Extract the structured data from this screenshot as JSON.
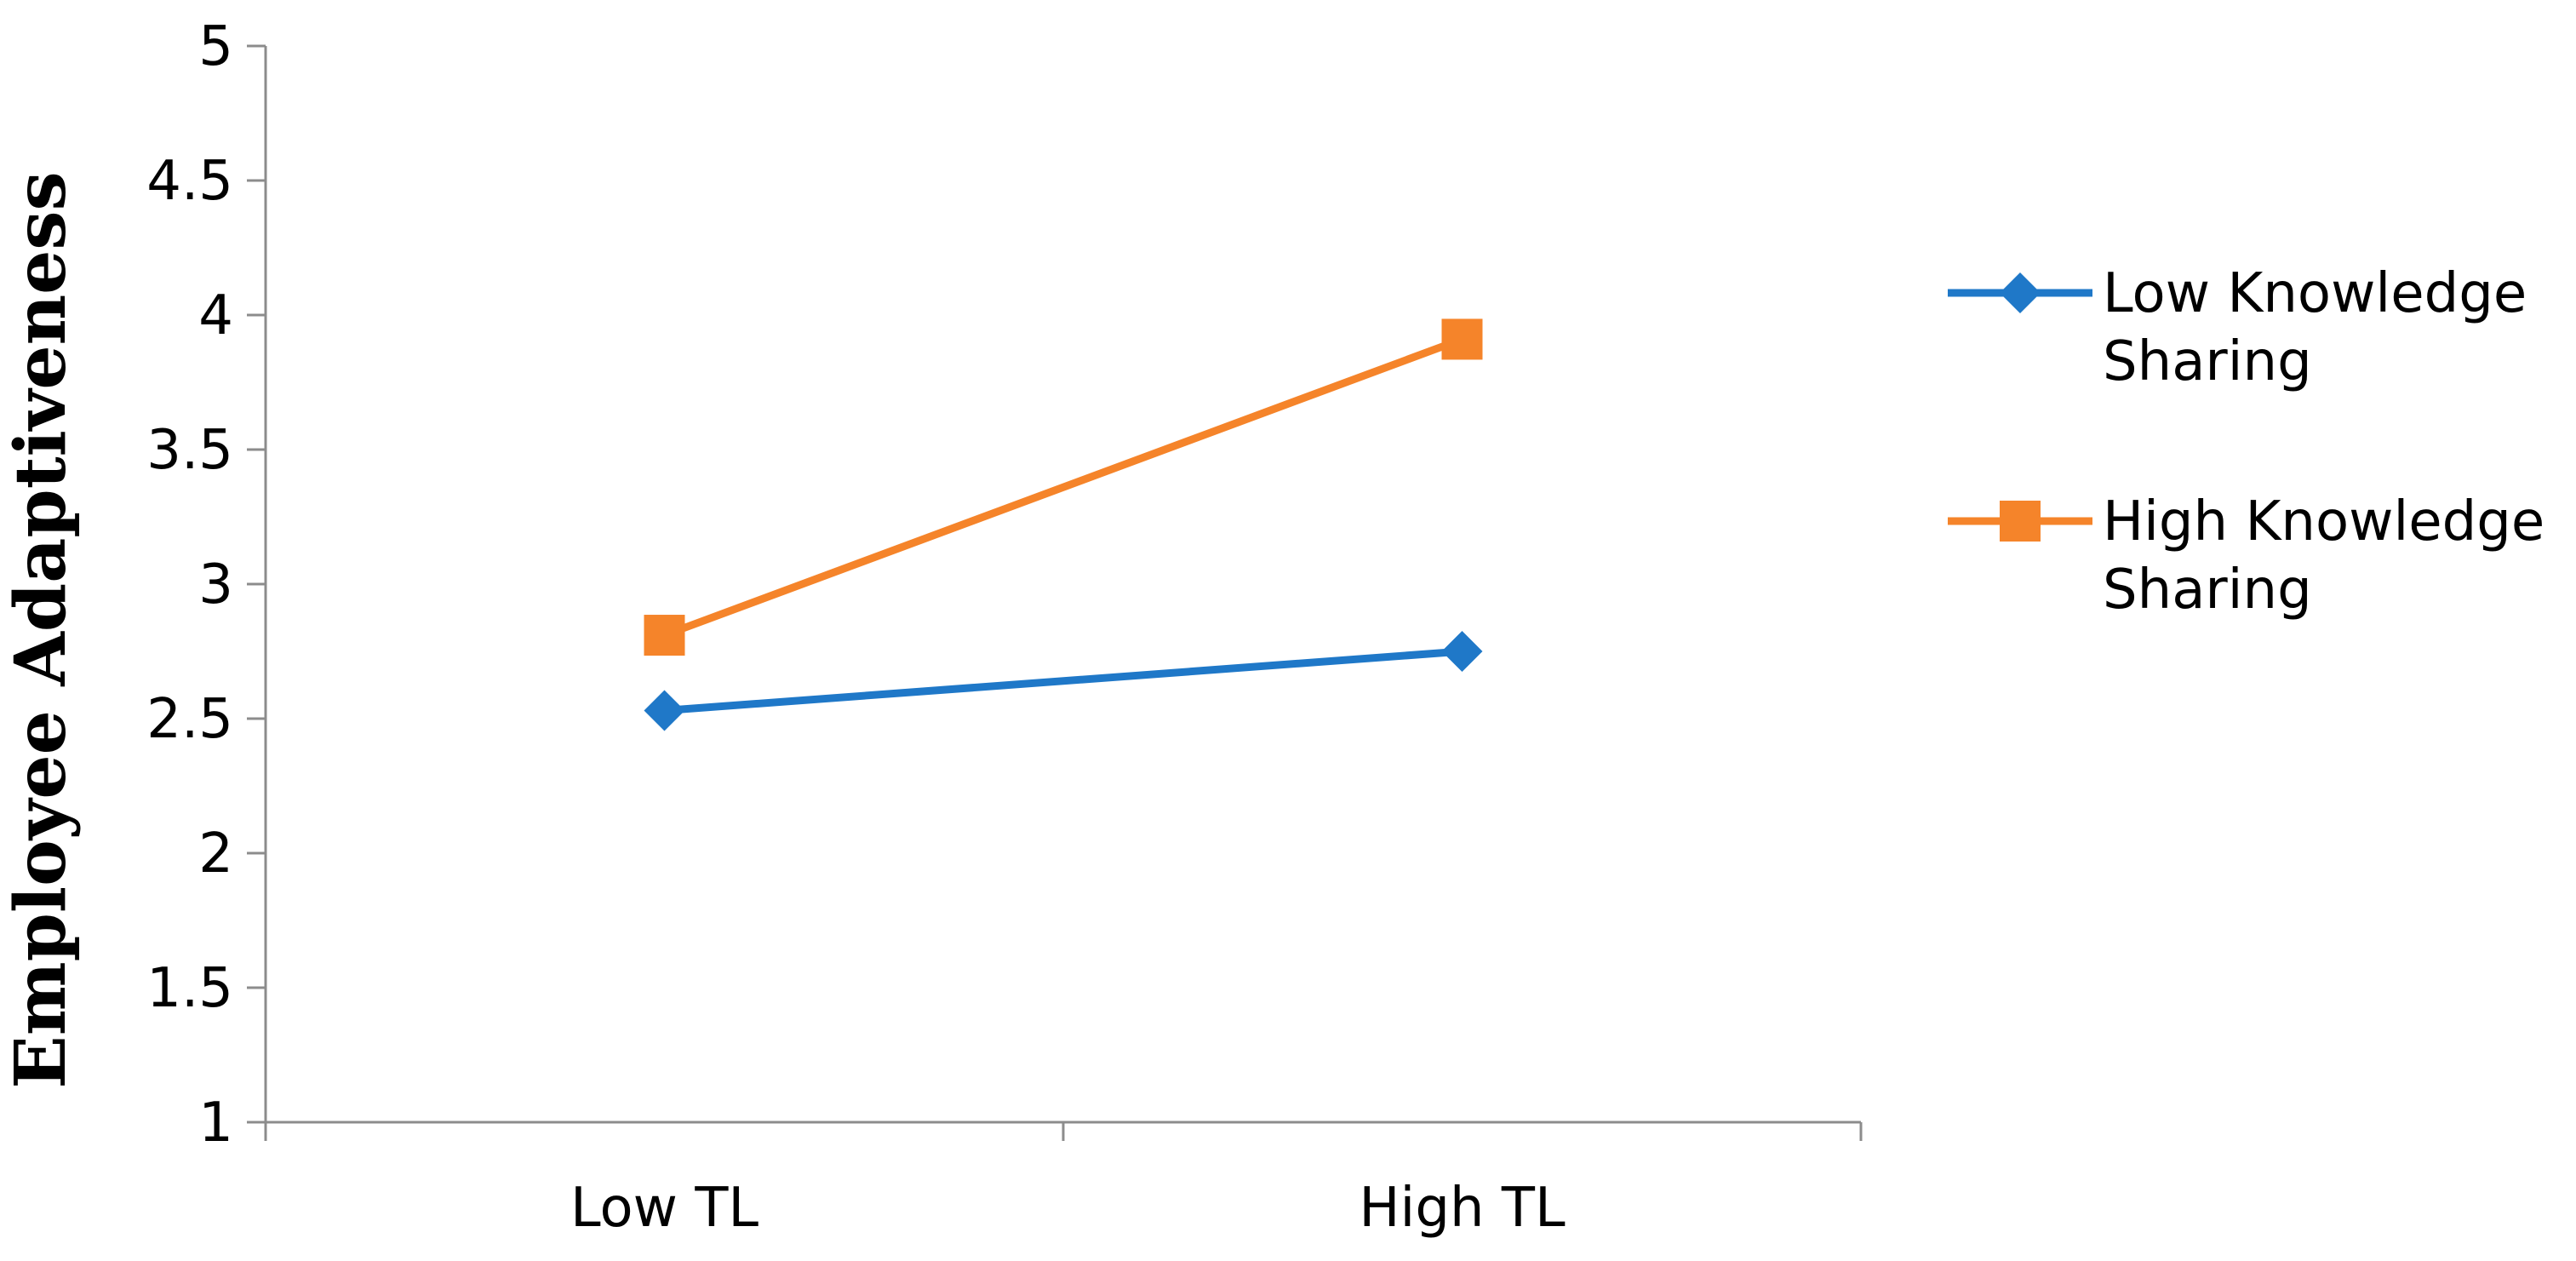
{
  "chart_data": {
    "type": "line",
    "title": "",
    "xlabel": "",
    "ylabel": "Employee Adaptiveness",
    "categories": [
      "Low TL",
      "High TL"
    ],
    "ylim": [
      1,
      5
    ],
    "yticks": [
      "1",
      "1.5",
      "2",
      "2.5",
      "3",
      "3.5",
      "4",
      "4.5",
      "5"
    ],
    "grid": false,
    "legend_position": "right",
    "series": [
      {
        "name_lines": [
          "Low Knowledge",
          "Sharing"
        ],
        "values": [
          2.53,
          2.75
        ],
        "color": "#1F78C8",
        "marker": "diamond"
      },
      {
        "name_lines": [
          "High Knowledge",
          "Sharing"
        ],
        "values": [
          2.81,
          3.91
        ],
        "color": "#F5842A",
        "marker": "square"
      }
    ]
  }
}
